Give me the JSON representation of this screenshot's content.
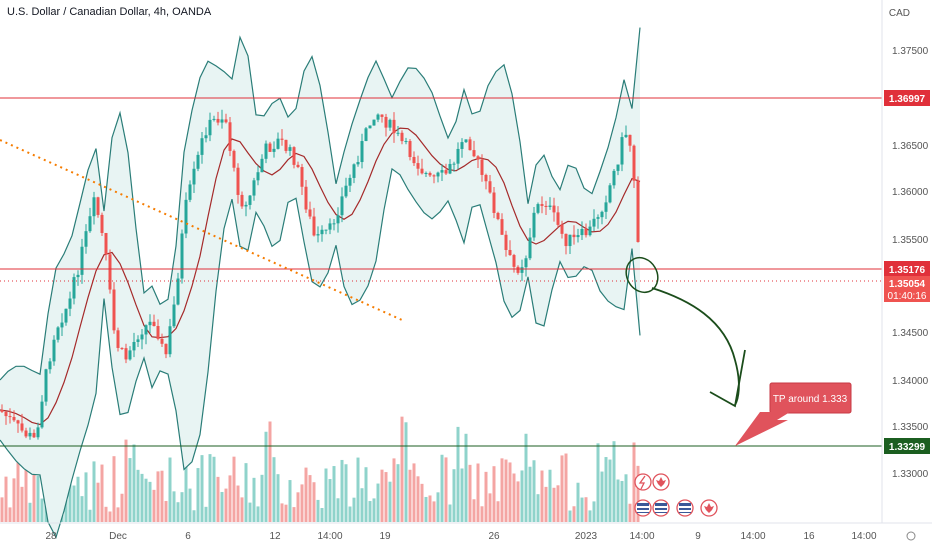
{
  "header": {
    "symbol_title": "U.S. Dollar / Canadian Dollar, 4h, OANDA",
    "currency": "CAD"
  },
  "price_axis": {
    "ticks": [
      "1.37500",
      "1.36500",
      "1.36000",
      "1.35500",
      "1.34500",
      "1.34000",
      "1.33500",
      "1.33000"
    ],
    "labels": {
      "resistance": "1.36997",
      "support_upper": "1.35176",
      "last_price": "1.35054",
      "countdown": "01:40:16",
      "target": "1.33299"
    }
  },
  "time_axis": {
    "ticks": [
      "28",
      "Dec",
      "6",
      "12",
      "14:00",
      "19",
      "26",
      "2023",
      "14:00",
      "9",
      "14:00",
      "16",
      "14:00"
    ]
  },
  "annotations": {
    "tp_callout": "TP around 1.333"
  },
  "colors": {
    "bull": "#26a69a",
    "bear": "#ef5350",
    "band_fill": "#e8f4f3",
    "band_line": "#2a7d78",
    "ma_line": "#a52a2a",
    "red_line": "#e0303a",
    "green_line": "#1b5e20",
    "trend_dots": "#f57c00",
    "callout": "#e0535c"
  }
}
